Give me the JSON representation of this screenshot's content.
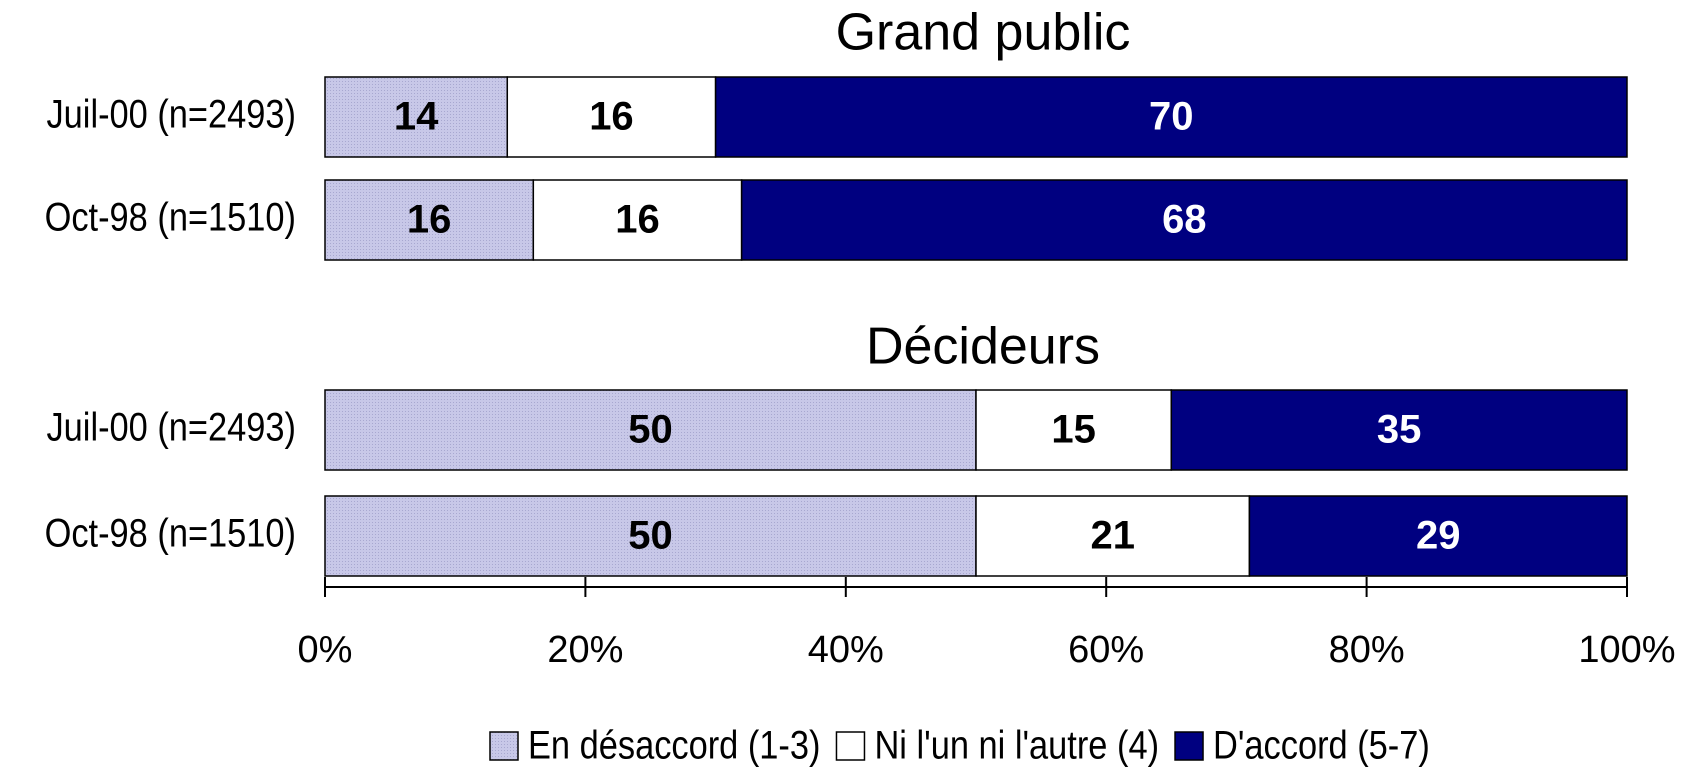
{
  "chart_data": [
    {
      "type": "bar",
      "orientation": "horizontal",
      "stacked": true,
      "title": "Grand public",
      "categories": [
        "Juil-00 (n=2493)",
        "Oct-98 (n=1510)"
      ],
      "series": [
        {
          "color": "#c8c8e8",
          "values": [
            14,
            16
          ]
        },
        {
          "color": "#ffffff",
          "values": [
            16,
            16
          ]
        },
        {
          "color": "#000080",
          "values": [
            70,
            68
          ]
        }
      ],
      "xlim": [
        0,
        100
      ]
    },
    {
      "type": "bar",
      "orientation": "horizontal",
      "stacked": true,
      "title": "Décideurs",
      "categories": [
        "Juil-00 (n=2493)",
        "Oct-98 (n=1510)"
      ],
      "series": [
        {
          "name": "En désaccord (1-3)",
          "color": "#c8c8e8",
          "values": [
            50,
            50
          ]
        },
        {
          "name": "Ni l'un ni l'autre (4)",
          "color": "#ffffff",
          "values": [
            15,
            21
          ]
        },
        {
          "name": "D'accord (5-7)",
          "color": "#000080",
          "values": [
            35,
            29
          ]
        }
      ],
      "xlim": [
        0,
        100
      ],
      "xticks": [
        {
          "value": 0,
          "label": "0%"
        },
        {
          "value": 20,
          "label": "20%"
        },
        {
          "value": 40,
          "label": "40%"
        },
        {
          "value": 60,
          "label": "60%"
        },
        {
          "value": 80,
          "label": "80%"
        },
        {
          "value": 100,
          "label": "100%"
        }
      ],
      "legend": "bottom"
    }
  ]
}
